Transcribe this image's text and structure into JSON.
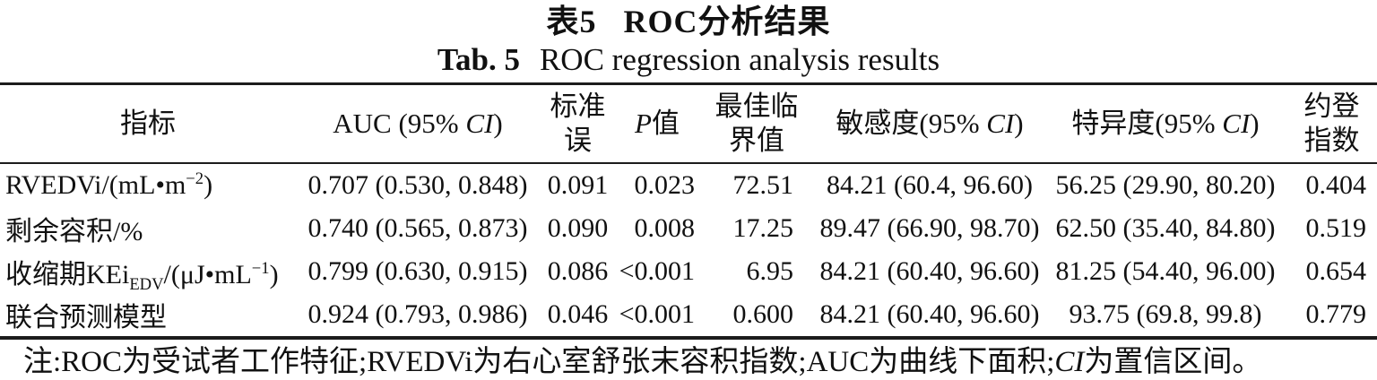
{
  "title": {
    "zh_label": "表5",
    "zh_text": "ROC分析结果",
    "en_label": "Tab. 5",
    "en_text": "ROC regression analysis results"
  },
  "table": {
    "headers": {
      "indicator": [
        {
          "t": "指标"
        }
      ],
      "auc": [
        {
          "t": "AUC (95% "
        },
        {
          "t": "CI",
          "i": true
        },
        {
          "t": ")"
        }
      ],
      "se": [
        {
          "t": "标准"
        },
        {
          "br": true
        },
        {
          "t": "误"
        }
      ],
      "p": [
        {
          "t": "P",
          "i": true
        },
        {
          "t": "值"
        }
      ],
      "cutoff": [
        {
          "t": "最佳临"
        },
        {
          "br": true
        },
        {
          "t": "界值"
        }
      ],
      "sensitivity": [
        {
          "t": "敏感度(95% "
        },
        {
          "t": "CI",
          "i": true
        },
        {
          "t": ")"
        }
      ],
      "specificity": [
        {
          "t": "特异度(95% "
        },
        {
          "t": "CI",
          "i": true
        },
        {
          "t": ")"
        }
      ],
      "youden": [
        {
          "t": "约登"
        },
        {
          "br": true
        },
        {
          "t": "指数"
        }
      ]
    },
    "rows": [
      {
        "indicator": [
          {
            "t": "RVEDVi/(mL•m"
          },
          {
            "t": "−2",
            "sup": true
          },
          {
            "t": ")"
          }
        ],
        "auc": "0.707 (0.530, 0.848)",
        "se": "0.091",
        "p": "0.023",
        "cutoff": "72.51",
        "sensitivity": "84.21 (60.4, 96.60)",
        "specificity": "56.25 (29.90, 80.20)",
        "youden": "0.404"
      },
      {
        "indicator": [
          {
            "t": "剩余容积/%"
          }
        ],
        "auc": "0.740 (0.565, 0.873)",
        "se": "0.090",
        "p": "0.008",
        "cutoff": "17.25",
        "sensitivity": "89.47 (66.90, 98.70)",
        "specificity": "62.50 (35.40, 84.80)",
        "youden": "0.519"
      },
      {
        "indicator": [
          {
            "t": "收缩期KEi"
          },
          {
            "t": "EDV",
            "sub": true
          },
          {
            "t": "/(μJ•mL"
          },
          {
            "t": "−1",
            "sup": true
          },
          {
            "t": ")"
          }
        ],
        "auc": "0.799 (0.630, 0.915)",
        "se": "0.086",
        "p": "<0.001",
        "cutoff": "6.95",
        "sensitivity": "84.21 (60.40, 96.60)",
        "specificity": "81.25 (54.40, 96.00)",
        "youden": "0.654"
      },
      {
        "indicator": [
          {
            "t": "联合预测模型"
          }
        ],
        "auc": "0.924 (0.793, 0.986)",
        "se": "0.046",
        "p": "<0.001",
        "cutoff": "0.600",
        "sensitivity": "84.21 (60.40, 96.60)",
        "specificity": "93.75 (69.8, 99.8)",
        "youden": "0.779"
      }
    ]
  },
  "note": [
    {
      "t": "注:ROC为受试者工作特征;RVEDVi为右心室舒张末容积指数;AUC为曲线下面积;"
    },
    {
      "t": "CI",
      "i": true
    },
    {
      "t": "为置信区间。"
    }
  ],
  "colors": {
    "text": "#111111",
    "rule": "#1c1c1c",
    "background": "#ffffff"
  }
}
